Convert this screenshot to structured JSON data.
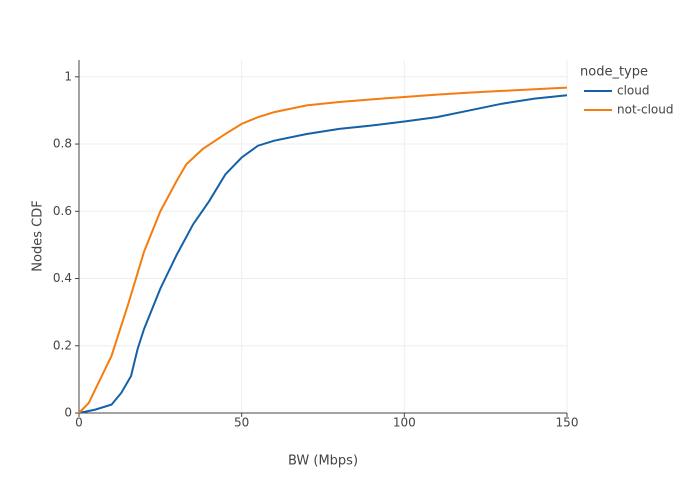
{
  "chart_data": {
    "type": "line",
    "x_label": "BW (Mbps)",
    "y_label": "Nodes CDF",
    "legend_title": "node_type",
    "xlim": [
      0,
      150
    ],
    "xticks": [
      0,
      50,
      100,
      150
    ],
    "ylim": [
      0,
      1.05
    ],
    "yticks": [
      0,
      0.2,
      0.4,
      0.6,
      0.8,
      1
    ],
    "grid": true,
    "legend": "right",
    "series": [
      {
        "name": "cloud",
        "color": "#1461a8",
        "x": [
          0,
          5,
          10,
          13,
          16,
          18,
          20,
          25,
          30,
          35,
          40,
          45,
          50,
          55,
          60,
          70,
          80,
          90,
          100,
          110,
          120,
          130,
          140,
          150
        ],
        "values": [
          0,
          0.01,
          0.025,
          0.06,
          0.11,
          0.19,
          0.25,
          0.37,
          0.47,
          0.56,
          0.63,
          0.71,
          0.76,
          0.795,
          0.81,
          0.83,
          0.845,
          0.855,
          0.867,
          0.88,
          0.9,
          0.92,
          0.935,
          0.945
        ]
      },
      {
        "name": "not-cloud",
        "color": "#f57c0f",
        "x": [
          0,
          3,
          6,
          10,
          15,
          20,
          25,
          30,
          33,
          38,
          45,
          50,
          55,
          60,
          70,
          80,
          90,
          100,
          110,
          120,
          130,
          140,
          150
        ],
        "values": [
          0,
          0.03,
          0.09,
          0.17,
          0.32,
          0.48,
          0.6,
          0.69,
          0.74,
          0.785,
          0.83,
          0.86,
          0.88,
          0.895,
          0.915,
          0.925,
          0.933,
          0.94,
          0.947,
          0.953,
          0.958,
          0.963,
          0.968
        ]
      }
    ]
  }
}
